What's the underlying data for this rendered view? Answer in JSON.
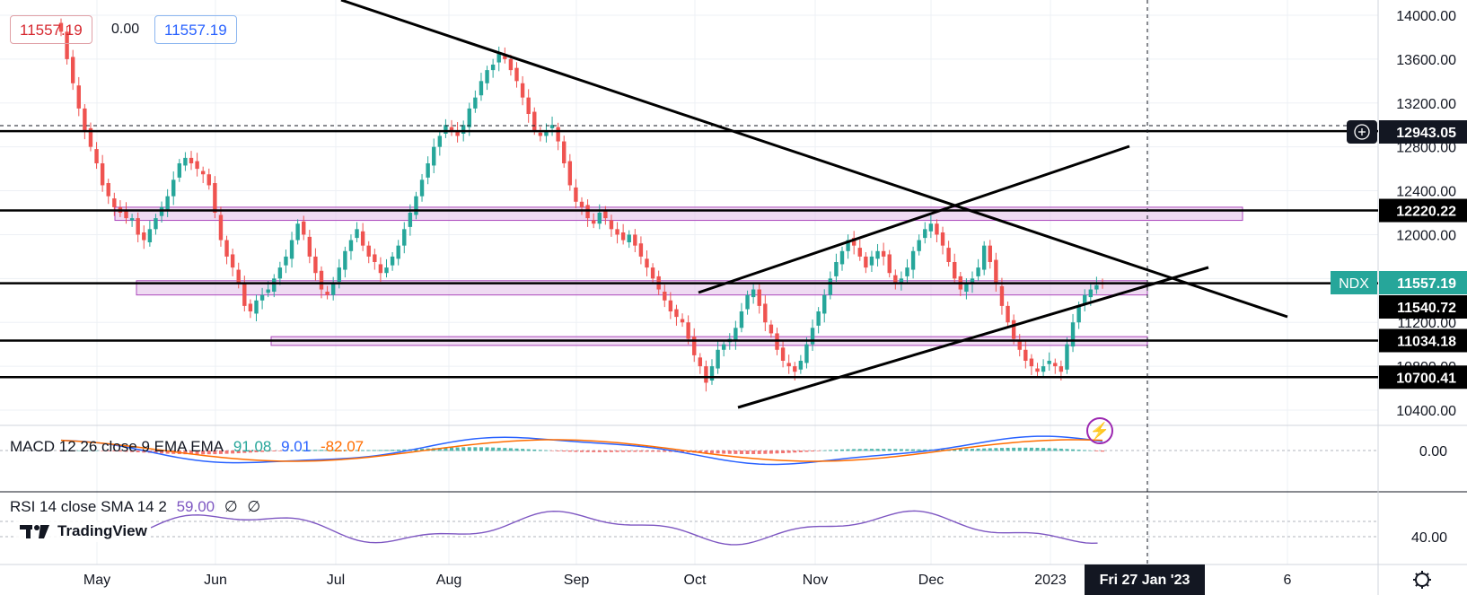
{
  "ohlc": {
    "value_left": "11557.19",
    "change": "0.00",
    "value_right": "11557.19"
  },
  "symbol_tag": "NDX",
  "price_labels": {
    "p12943": "12943.05",
    "p12220": "12220.22",
    "p11557": "11557.19",
    "p11540": "11540.72",
    "p11034": "11034.18",
    "p10700": "10700.41"
  },
  "macd": {
    "label": "MACD 12 26 close 9 EMA EMA",
    "v1": "91.08",
    "v2": "9.01",
    "v3": "-82.07",
    "axis_zero": "0.00"
  },
  "rsi": {
    "label": "RSI 14 close SMA 14 2",
    "v1": "59.00",
    "v2": "∅",
    "v3": "∅",
    "axis_40": "40.00"
  },
  "brand": "TradingView",
  "crosshair_date": "Fri 27 Jan '23",
  "colors": {
    "up": "#26a69a",
    "down": "#ef5350",
    "zone": "#e1bee7",
    "zone_border": "#ab47bc",
    "rsi": "#7e57c2",
    "macd": "#2962ff",
    "signal": "#ff6d00"
  },
  "chart_data": {
    "type": "candlestick",
    "y_ticks": [
      10400,
      10800,
      11200,
      11600,
      12000,
      12400,
      12800,
      13200,
      13600,
      14000
    ],
    "y_tick_labels": [
      "10400.00",
      "10800.00",
      "11200.00",
      "11600.00",
      "12000.00",
      "12400.00",
      "12800.00",
      "13200.00",
      "13600.00",
      "14000.00"
    ],
    "x_labels": [
      "May",
      "Jun",
      "Jul",
      "Aug",
      "Sep",
      "Oct",
      "Nov",
      "Dec",
      "2023",
      "6"
    ],
    "close": [
      13850,
      13600,
      13380,
      13150,
      12950,
      12800,
      12650,
      12450,
      12350,
      12250,
      12200,
      12150,
      12150,
      12000,
      11950,
      12050,
      12150,
      12250,
      12350,
      12500,
      12650,
      12700,
      12650,
      12600,
      12550,
      12450,
      12200,
      11950,
      11800,
      11700,
      11550,
      11350,
      11300,
      11400,
      11450,
      11500,
      11600,
      11700,
      11800,
      11950,
      12100,
      12000,
      11800,
      11650,
      11500,
      11450,
      11550,
      11700,
      11850,
      11950,
      12050,
      11900,
      11800,
      11750,
      11650,
      11700,
      11800,
      11900,
      12050,
      12200,
      12350,
      12500,
      12650,
      12800,
      12900,
      13000,
      12950,
      12900,
      13000,
      13150,
      13250,
      13400,
      13500,
      13550,
      13650,
      13600,
      13500,
      13400,
      13250,
      13100,
      12950,
      12900,
      12950,
      13000,
      12850,
      12650,
      12450,
      12300,
      12250,
      12150,
      12100,
      12200,
      12150,
      12050,
      12000,
      11950,
      12000,
      11900,
      11800,
      11700,
      11600,
      11500,
      11400,
      11300,
      11250,
      11200,
      11050,
      10900,
      10800,
      10650,
      10800,
      10950,
      11000,
      11050,
      11150,
      11300,
      11450,
      11500,
      11350,
      11200,
      11100,
      10950,
      10850,
      10800,
      10750,
      10850,
      11000,
      11150,
      11300,
      11450,
      11600,
      11750,
      11850,
      11950,
      11900,
      11800,
      11700,
      11800,
      11850,
      11800,
      11650,
      11550,
      11600,
      11700,
      11850,
      11950,
      12050,
      12100,
      12000,
      11900,
      11750,
      11600,
      11500,
      11550,
      11600,
      11700,
      11900,
      11750,
      11550,
      11350,
      11200,
      11050,
      10950,
      10850,
      10800,
      10750,
      10800,
      10850,
      10800,
      10750,
      11000,
      11200,
      11350,
      11450,
      11500,
      11540,
      11557
    ],
    "macd_values": [
      91.08,
      9.01,
      -82.07
    ],
    "rsi_value": 59.0,
    "levels": [
      12943.05,
      12220.22,
      11557.19,
      11540.72,
      11034.18,
      10700.41
    ]
  }
}
